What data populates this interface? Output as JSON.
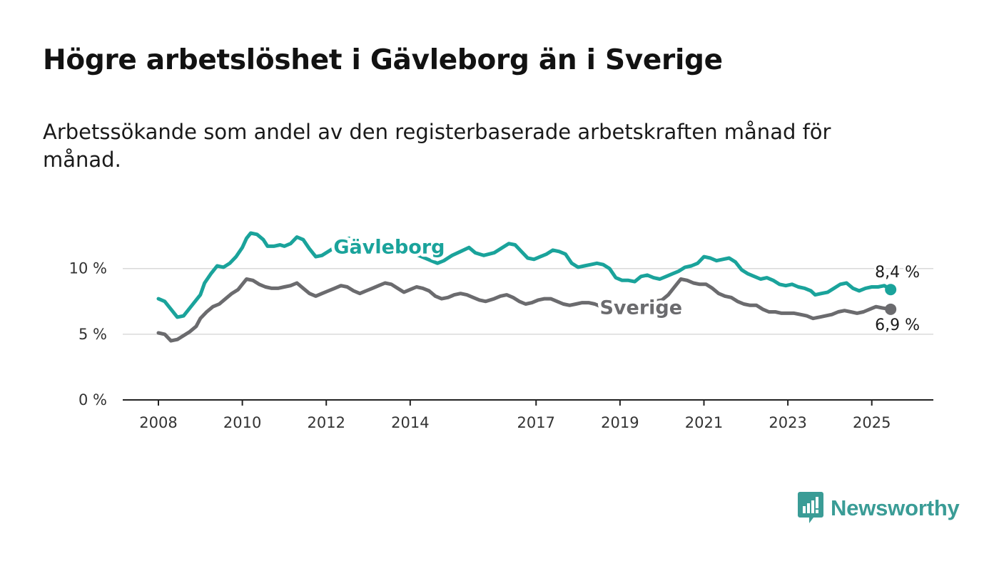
{
  "title": "Högre arbetslöshet i Gävleborg än i Sverige",
  "subtitle": "Arbetssökande som andel av den registerbaserade arbetskraften månad för månad.",
  "brand": {
    "name": "Newsworthy",
    "color": "#3a9c96",
    "icon": "bar-chart-speech-bubble-icon"
  },
  "chart_data": {
    "type": "line",
    "ylim": [
      0,
      14
    ],
    "xlim": [
      2008,
      2025.6
    ],
    "yticks": [
      {
        "value": 0,
        "label": "0 %"
      },
      {
        "value": 5,
        "label": "5 %"
      },
      {
        "value": 10,
        "label": "10 %"
      }
    ],
    "xticks": [
      {
        "value": 2008,
        "label": "2008"
      },
      {
        "value": 2010,
        "label": "2010"
      },
      {
        "value": 2012,
        "label": "2012"
      },
      {
        "value": 2014,
        "label": "2014"
      },
      {
        "value": 2017,
        "label": "2017"
      },
      {
        "value": 2019,
        "label": "2019"
      },
      {
        "value": 2021,
        "label": "2021"
      },
      {
        "value": 2023,
        "label": "2023"
      },
      {
        "value": 2025,
        "label": "2025"
      }
    ],
    "grid": true,
    "series": [
      {
        "name": "Gävleborg",
        "color": "#1aa39b",
        "end_label": "8,4 %",
        "points": [
          [
            2008.0,
            7.7
          ],
          [
            2008.15,
            7.5
          ],
          [
            2008.3,
            6.9
          ],
          [
            2008.45,
            6.3
          ],
          [
            2008.6,
            6.4
          ],
          [
            2008.75,
            7.0
          ],
          [
            2008.9,
            7.6
          ],
          [
            2009.0,
            8.0
          ],
          [
            2009.1,
            8.9
          ],
          [
            2009.25,
            9.6
          ],
          [
            2009.4,
            10.2
          ],
          [
            2009.55,
            10.1
          ],
          [
            2009.7,
            10.4
          ],
          [
            2009.85,
            10.9
          ],
          [
            2010.0,
            11.6
          ],
          [
            2010.1,
            12.3
          ],
          [
            2010.2,
            12.7
          ],
          [
            2010.35,
            12.6
          ],
          [
            2010.5,
            12.2
          ],
          [
            2010.6,
            11.7
          ],
          [
            2010.75,
            11.7
          ],
          [
            2010.9,
            11.8
          ],
          [
            2011.0,
            11.7
          ],
          [
            2011.15,
            11.9
          ],
          [
            2011.3,
            12.4
          ],
          [
            2011.45,
            12.2
          ],
          [
            2011.6,
            11.5
          ],
          [
            2011.75,
            10.9
          ],
          [
            2011.9,
            11.0
          ],
          [
            2012.1,
            11.4
          ],
          [
            2012.25,
            11.7
          ],
          [
            2012.4,
            12.2
          ],
          [
            2012.55,
            12.3
          ],
          [
            2012.7,
            12.1
          ],
          [
            2012.9,
            11.3
          ],
          [
            2013.2,
            11.2
          ],
          [
            2013.5,
            11.3
          ],
          [
            2013.8,
            11.4
          ],
          [
            2014.0,
            11.2
          ],
          [
            2014.2,
            11.0
          ],
          [
            2014.35,
            10.8
          ],
          [
            2014.5,
            10.6
          ],
          [
            2014.65,
            10.4
          ],
          [
            2014.8,
            10.6
          ],
          [
            2015.0,
            11.0
          ],
          [
            2015.2,
            11.3
          ],
          [
            2015.4,
            11.6
          ],
          [
            2015.55,
            11.2
          ],
          [
            2015.75,
            11.0
          ],
          [
            2016.0,
            11.2
          ],
          [
            2016.2,
            11.6
          ],
          [
            2016.35,
            11.9
          ],
          [
            2016.5,
            11.8
          ],
          [
            2016.65,
            11.3
          ],
          [
            2016.8,
            10.8
          ],
          [
            2016.95,
            10.7
          ],
          [
            2017.1,
            10.9
          ],
          [
            2017.25,
            11.1
          ],
          [
            2017.4,
            11.4
          ],
          [
            2017.55,
            11.3
          ],
          [
            2017.7,
            11.1
          ],
          [
            2017.85,
            10.4
          ],
          [
            2018.0,
            10.1
          ],
          [
            2018.15,
            10.2
          ],
          [
            2018.3,
            10.3
          ],
          [
            2018.45,
            10.4
          ],
          [
            2018.6,
            10.3
          ],
          [
            2018.75,
            10.0
          ],
          [
            2018.9,
            9.3
          ],
          [
            2019.05,
            9.1
          ],
          [
            2019.2,
            9.1
          ],
          [
            2019.35,
            9.0
          ],
          [
            2019.5,
            9.4
          ],
          [
            2019.65,
            9.5
          ],
          [
            2019.8,
            9.3
          ],
          [
            2019.95,
            9.2
          ],
          [
            2020.1,
            9.4
          ],
          [
            2020.25,
            9.6
          ],
          [
            2020.4,
            9.8
          ],
          [
            2020.55,
            10.1
          ],
          [
            2020.7,
            10.2
          ],
          [
            2020.85,
            10.4
          ],
          [
            2021.0,
            10.9
          ],
          [
            2021.15,
            10.8
          ],
          [
            2021.3,
            10.6
          ],
          [
            2021.45,
            10.7
          ],
          [
            2021.6,
            10.8
          ],
          [
            2021.75,
            10.5
          ],
          [
            2021.9,
            9.9
          ],
          [
            2022.05,
            9.6
          ],
          [
            2022.2,
            9.4
          ],
          [
            2022.35,
            9.2
          ],
          [
            2022.5,
            9.3
          ],
          [
            2022.65,
            9.1
          ],
          [
            2022.8,
            8.8
          ],
          [
            2022.95,
            8.7
          ],
          [
            2023.1,
            8.8
          ],
          [
            2023.25,
            8.6
          ],
          [
            2023.4,
            8.5
          ],
          [
            2023.55,
            8.3
          ],
          [
            2023.65,
            8.0
          ],
          [
            2023.8,
            8.1
          ],
          [
            2023.95,
            8.2
          ],
          [
            2024.1,
            8.5
          ],
          [
            2024.25,
            8.8
          ],
          [
            2024.4,
            8.9
          ],
          [
            2024.55,
            8.5
          ],
          [
            2024.7,
            8.3
          ],
          [
            2024.85,
            8.5
          ],
          [
            2025.0,
            8.6
          ],
          [
            2025.15,
            8.6
          ],
          [
            2025.3,
            8.7
          ],
          [
            2025.45,
            8.4
          ]
        ]
      },
      {
        "name": "Sverige",
        "color": "#6b6b6e",
        "end_label": "6,9 %",
        "points": [
          [
            2008.0,
            5.1
          ],
          [
            2008.15,
            5.0
          ],
          [
            2008.3,
            4.5
          ],
          [
            2008.45,
            4.6
          ],
          [
            2008.6,
            4.9
          ],
          [
            2008.75,
            5.2
          ],
          [
            2008.9,
            5.6
          ],
          [
            2009.0,
            6.2
          ],
          [
            2009.15,
            6.7
          ],
          [
            2009.3,
            7.1
          ],
          [
            2009.45,
            7.3
          ],
          [
            2009.6,
            7.7
          ],
          [
            2009.75,
            8.1
          ],
          [
            2009.9,
            8.4
          ],
          [
            2010.0,
            8.8
          ],
          [
            2010.1,
            9.2
          ],
          [
            2010.25,
            9.1
          ],
          [
            2010.4,
            8.8
          ],
          [
            2010.55,
            8.6
          ],
          [
            2010.7,
            8.5
          ],
          [
            2010.85,
            8.5
          ],
          [
            2011.0,
            8.6
          ],
          [
            2011.15,
            8.7
          ],
          [
            2011.3,
            8.9
          ],
          [
            2011.45,
            8.5
          ],
          [
            2011.6,
            8.1
          ],
          [
            2011.75,
            7.9
          ],
          [
            2011.9,
            8.1
          ],
          [
            2012.05,
            8.3
          ],
          [
            2012.2,
            8.5
          ],
          [
            2012.35,
            8.7
          ],
          [
            2012.5,
            8.6
          ],
          [
            2012.65,
            8.3
          ],
          [
            2012.8,
            8.1
          ],
          [
            2012.95,
            8.3
          ],
          [
            2013.1,
            8.5
          ],
          [
            2013.25,
            8.7
          ],
          [
            2013.4,
            8.9
          ],
          [
            2013.55,
            8.8
          ],
          [
            2013.7,
            8.5
          ],
          [
            2013.85,
            8.2
          ],
          [
            2014.0,
            8.4
          ],
          [
            2014.15,
            8.6
          ],
          [
            2014.3,
            8.5
          ],
          [
            2014.45,
            8.3
          ],
          [
            2014.6,
            7.9
          ],
          [
            2014.75,
            7.7
          ],
          [
            2014.9,
            7.8
          ],
          [
            2015.05,
            8.0
          ],
          [
            2015.2,
            8.1
          ],
          [
            2015.35,
            8.0
          ],
          [
            2015.5,
            7.8
          ],
          [
            2015.65,
            7.6
          ],
          [
            2015.8,
            7.5
          ],
          [
            2016.0,
            7.7
          ],
          [
            2016.15,
            7.9
          ],
          [
            2016.3,
            8.0
          ],
          [
            2016.45,
            7.8
          ],
          [
            2016.6,
            7.5
          ],
          [
            2016.75,
            7.3
          ],
          [
            2016.9,
            7.4
          ],
          [
            2017.05,
            7.6
          ],
          [
            2017.2,
            7.7
          ],
          [
            2017.35,
            7.7
          ],
          [
            2017.5,
            7.5
          ],
          [
            2017.65,
            7.3
          ],
          [
            2017.8,
            7.2
          ],
          [
            2017.95,
            7.3
          ],
          [
            2018.1,
            7.4
          ],
          [
            2018.25,
            7.4
          ],
          [
            2018.4,
            7.3
          ],
          [
            2018.55,
            7.1
          ],
          [
            2018.7,
            6.9
          ],
          [
            2018.85,
            6.9
          ],
          [
            2019.0,
            7.0
          ],
          [
            2019.2,
            7.1
          ],
          [
            2019.4,
            7.2
          ],
          [
            2019.6,
            7.3
          ],
          [
            2019.8,
            7.5
          ],
          [
            2020.0,
            7.6
          ],
          [
            2020.15,
            8.0
          ],
          [
            2020.3,
            8.6
          ],
          [
            2020.45,
            9.2
          ],
          [
            2020.6,
            9.1
          ],
          [
            2020.75,
            8.9
          ],
          [
            2020.9,
            8.8
          ],
          [
            2021.05,
            8.8
          ],
          [
            2021.2,
            8.5
          ],
          [
            2021.35,
            8.1
          ],
          [
            2021.5,
            7.9
          ],
          [
            2021.65,
            7.8
          ],
          [
            2021.8,
            7.5
          ],
          [
            2021.95,
            7.3
          ],
          [
            2022.1,
            7.2
          ],
          [
            2022.25,
            7.2
          ],
          [
            2022.4,
            6.9
          ],
          [
            2022.55,
            6.7
          ],
          [
            2022.7,
            6.7
          ],
          [
            2022.85,
            6.6
          ],
          [
            2023.0,
            6.6
          ],
          [
            2023.15,
            6.6
          ],
          [
            2023.3,
            6.5
          ],
          [
            2023.45,
            6.4
          ],
          [
            2023.6,
            6.2
          ],
          [
            2023.75,
            6.3
          ],
          [
            2023.9,
            6.4
          ],
          [
            2024.05,
            6.5
          ],
          [
            2024.2,
            6.7
          ],
          [
            2024.35,
            6.8
          ],
          [
            2024.5,
            6.7
          ],
          [
            2024.65,
            6.6
          ],
          [
            2024.8,
            6.7
          ],
          [
            2024.95,
            6.9
          ],
          [
            2025.1,
            7.1
          ],
          [
            2025.25,
            7.0
          ],
          [
            2025.45,
            6.9
          ]
        ]
      }
    ]
  }
}
